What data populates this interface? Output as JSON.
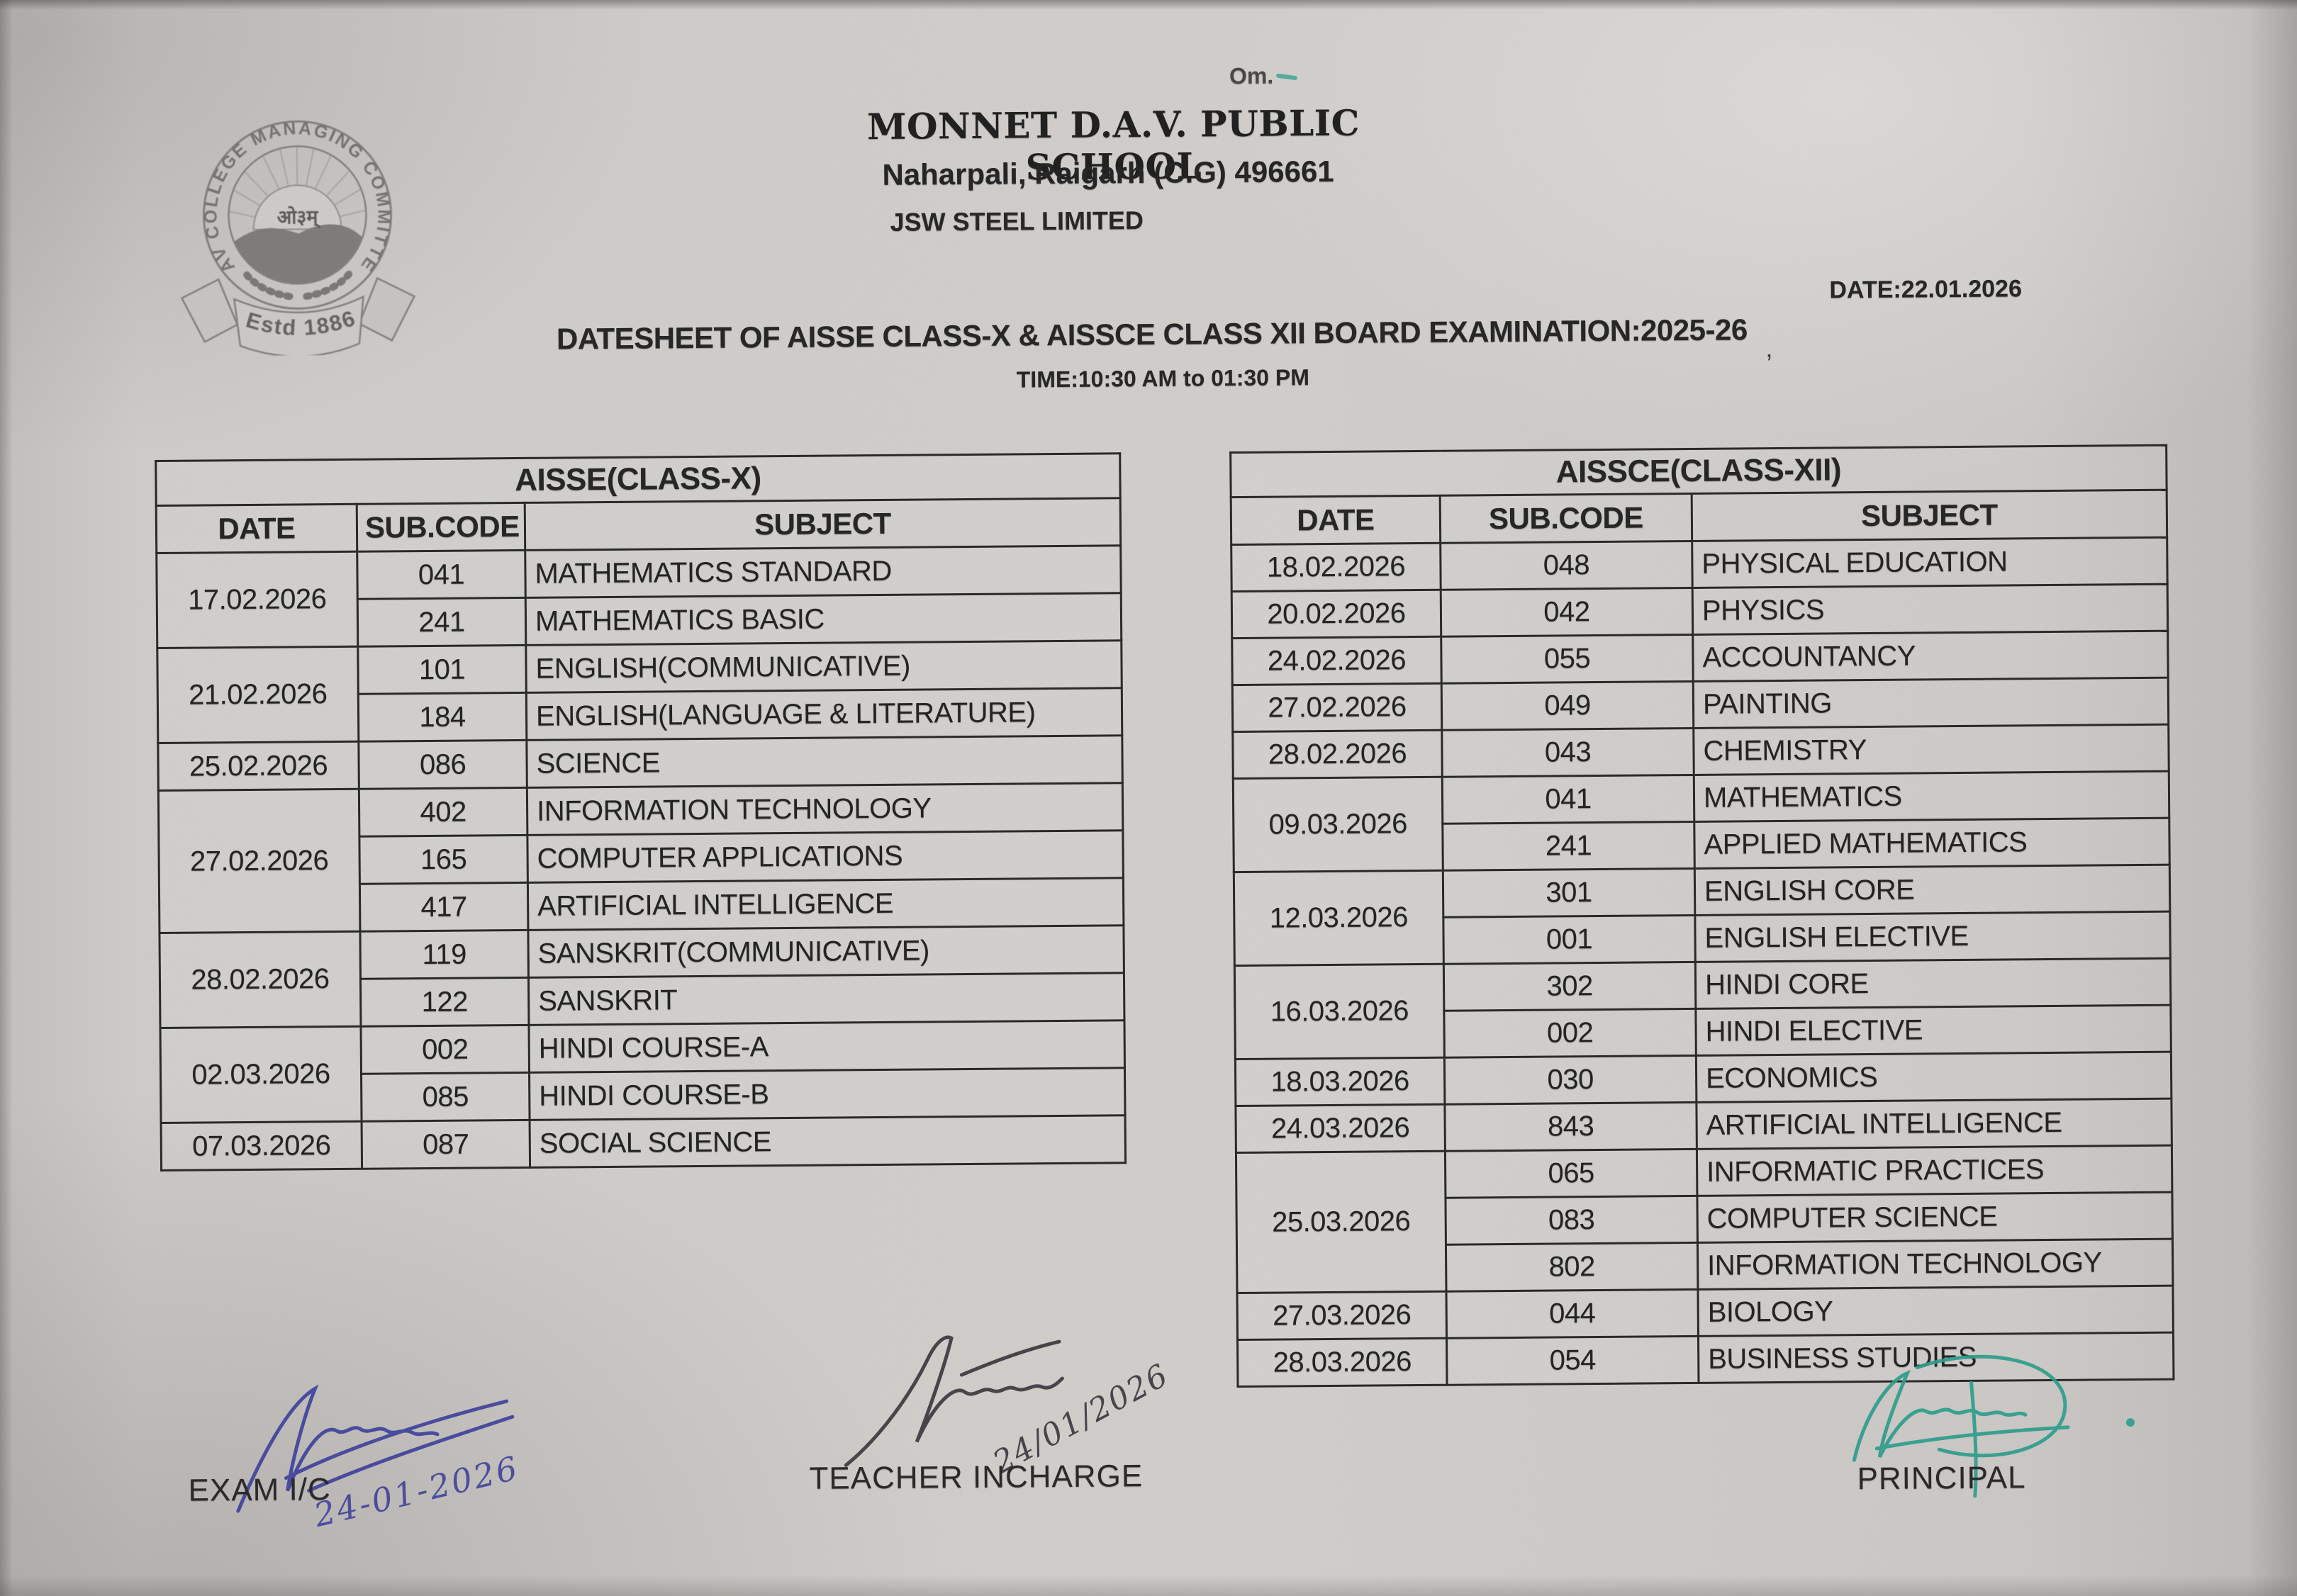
{
  "om_text": "Om.",
  "logo": {
    "ring_text": "DAV COLLEGE MANAGING COMMITTEE",
    "om_symbol": "ओ३म्",
    "banner_text": "Estd 1886"
  },
  "header": {
    "school_name": "MONNET D.A.V. PUBLIC SCHOOL",
    "address": "Naharpali, Raigarh (C.G) 496661",
    "organization": "JSW STEEL LIMITED",
    "date_line": "DATE:22.01.2026",
    "title": "DATESHEET OF AISSE CLASS-X & AISSCE CLASS XII BOARD EXAMINATION:2025-26",
    "time_line": "TIME:10:30 AM to 01:30 PM"
  },
  "marks": {
    "stray_mark": "’"
  },
  "tables": [
    {
      "title": "AISSE(CLASS-X)",
      "headers": [
        "DATE",
        "SUB.CODE",
        "SUBJECT"
      ],
      "groups": [
        {
          "date": "17.02.2026",
          "entries": [
            [
              "041",
              "MATHEMATICS STANDARD"
            ],
            [
              "241",
              "MATHEMATICS BASIC"
            ]
          ]
        },
        {
          "date": "21.02.2026",
          "entries": [
            [
              "101",
              "ENGLISH(COMMUNICATIVE)"
            ],
            [
              "184",
              "ENGLISH(LANGUAGE & LITERATURE)"
            ]
          ]
        },
        {
          "date": "25.02.2026",
          "entries": [
            [
              "086",
              "SCIENCE"
            ]
          ]
        },
        {
          "date": "27.02.2026",
          "entries": [
            [
              "402",
              "INFORMATION TECHNOLOGY"
            ],
            [
              "165",
              "COMPUTER APPLICATIONS"
            ],
            [
              "417",
              "ARTIFICIAL INTELLIGENCE"
            ]
          ]
        },
        {
          "date": "28.02.2026",
          "entries": [
            [
              "119",
              "SANSKRIT(COMMUNICATIVE)"
            ],
            [
              "122",
              "SANSKRIT"
            ]
          ]
        },
        {
          "date": "02.03.2026",
          "entries": [
            [
              "002",
              "HINDI COURSE-A"
            ],
            [
              "085",
              "HINDI COURSE-B"
            ]
          ]
        },
        {
          "date": "07.03.2026",
          "entries": [
            [
              "087",
              "SOCIAL SCIENCE"
            ]
          ]
        }
      ]
    },
    {
      "title": "AISSCE(CLASS-XII)",
      "headers": [
        "DATE",
        "SUB.CODE",
        "SUBJECT"
      ],
      "groups": [
        {
          "date": "18.02.2026",
          "entries": [
            [
              "048",
              "PHYSICAL EDUCATION"
            ]
          ]
        },
        {
          "date": "20.02.2026",
          "entries": [
            [
              "042",
              "PHYSICS"
            ]
          ]
        },
        {
          "date": "24.02.2026",
          "entries": [
            [
              "055",
              "ACCOUNTANCY"
            ]
          ]
        },
        {
          "date": "27.02.2026",
          "entries": [
            [
              "049",
              "PAINTING"
            ]
          ]
        },
        {
          "date": "28.02.2026",
          "entries": [
            [
              "043",
              "CHEMISTRY"
            ]
          ]
        },
        {
          "date": "09.03.2026",
          "entries": [
            [
              "041",
              "MATHEMATICS"
            ],
            [
              "241",
              "APPLIED MATHEMATICS"
            ]
          ]
        },
        {
          "date": "12.03.2026",
          "entries": [
            [
              "301",
              "ENGLISH CORE"
            ],
            [
              "001",
              "ENGLISH ELECTIVE"
            ]
          ]
        },
        {
          "date": "16.03.2026",
          "entries": [
            [
              "302",
              "HINDI CORE"
            ],
            [
              "002",
              "HINDI ELECTIVE"
            ]
          ]
        },
        {
          "date": "18.03.2026",
          "entries": [
            [
              "030",
              "ECONOMICS"
            ]
          ]
        },
        {
          "date": "24.03.2026",
          "entries": [
            [
              "843",
              "ARTIFICIAL INTELLIGENCE"
            ]
          ]
        },
        {
          "date": "25.03.2026",
          "entries": [
            [
              "065",
              "INFORMATIC PRACTICES"
            ],
            [
              "083",
              "COMPUTER SCIENCE"
            ],
            [
              "802",
              "INFORMATION TECHNOLOGY"
            ]
          ]
        },
        {
          "date": "27.03.2026",
          "entries": [
            [
              "044",
              "BIOLOGY"
            ]
          ]
        },
        {
          "date": "28.03.2026",
          "entries": [
            [
              "054",
              "BUSINESS STUDIES"
            ]
          ]
        }
      ]
    }
  ],
  "signatures": [
    {
      "label": "EXAM I/C",
      "handwritten_date": "24-01-2026",
      "ink": "#3d3f9b"
    },
    {
      "label": "TEACHER INCHARGE",
      "handwritten_date": "24/01/2026",
      "ink": "#34343a"
    },
    {
      "label": "PRINCIPAL",
      "handwritten_date": "",
      "ink": "#2b9c8b"
    }
  ],
  "colors": {
    "paper": "#cdcac7",
    "text": "#232323",
    "table_border": "#262626",
    "teal_mark": "#2f9e8e"
  }
}
